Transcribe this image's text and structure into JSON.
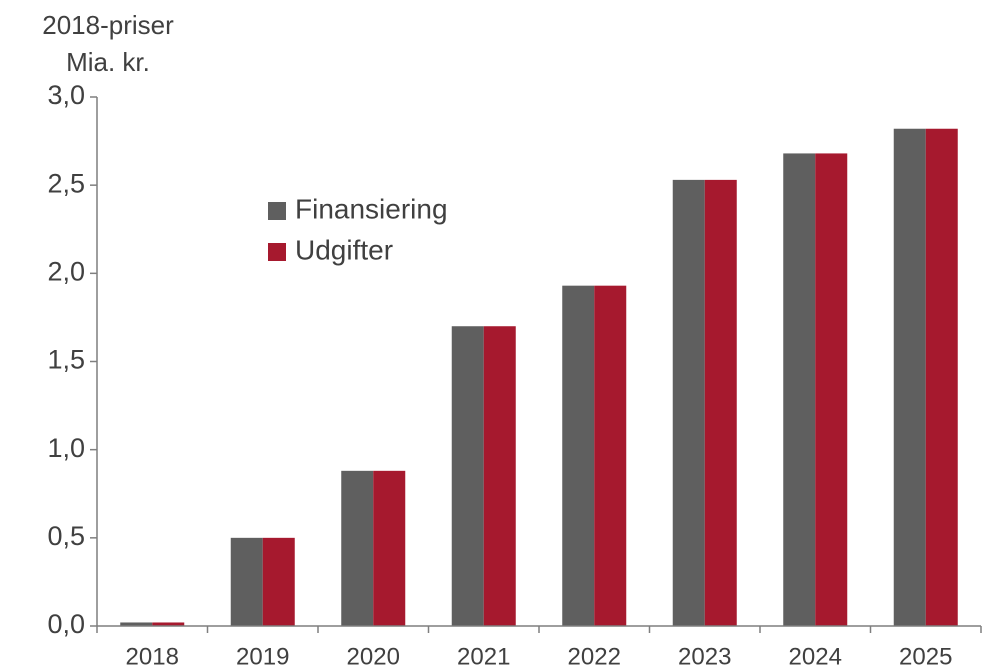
{
  "chart_data": {
    "type": "bar",
    "y_axis_label": [
      "2018-priser",
      "Mia. kr."
    ],
    "categories": [
      "2018",
      "2019",
      "2020",
      "2021",
      "2022",
      "2023",
      "2024",
      "2025"
    ],
    "series": [
      {
        "name": "Finansiering",
        "color": "#5f5f5f",
        "values": [
          0.02,
          0.5,
          0.88,
          1.7,
          1.93,
          2.53,
          2.68,
          2.82
        ]
      },
      {
        "name": "Udgifter",
        "color": "#a6192e",
        "values": [
          0.02,
          0.5,
          0.88,
          1.7,
          1.93,
          2.53,
          2.68,
          2.82
        ]
      }
    ],
    "ylim": [
      0,
      3
    ],
    "yticks": [
      {
        "value": 0,
        "label": "0,0"
      },
      {
        "value": 0.5,
        "label": "0,5"
      },
      {
        "value": 1,
        "label": "1,0"
      },
      {
        "value": 1.5,
        "label": "1,5"
      },
      {
        "value": 2,
        "label": "2,0"
      },
      {
        "value": 2.5,
        "label": "2,5"
      },
      {
        "value": 3,
        "label": "3,0"
      }
    ],
    "grid": false,
    "legend": "upper left"
  }
}
